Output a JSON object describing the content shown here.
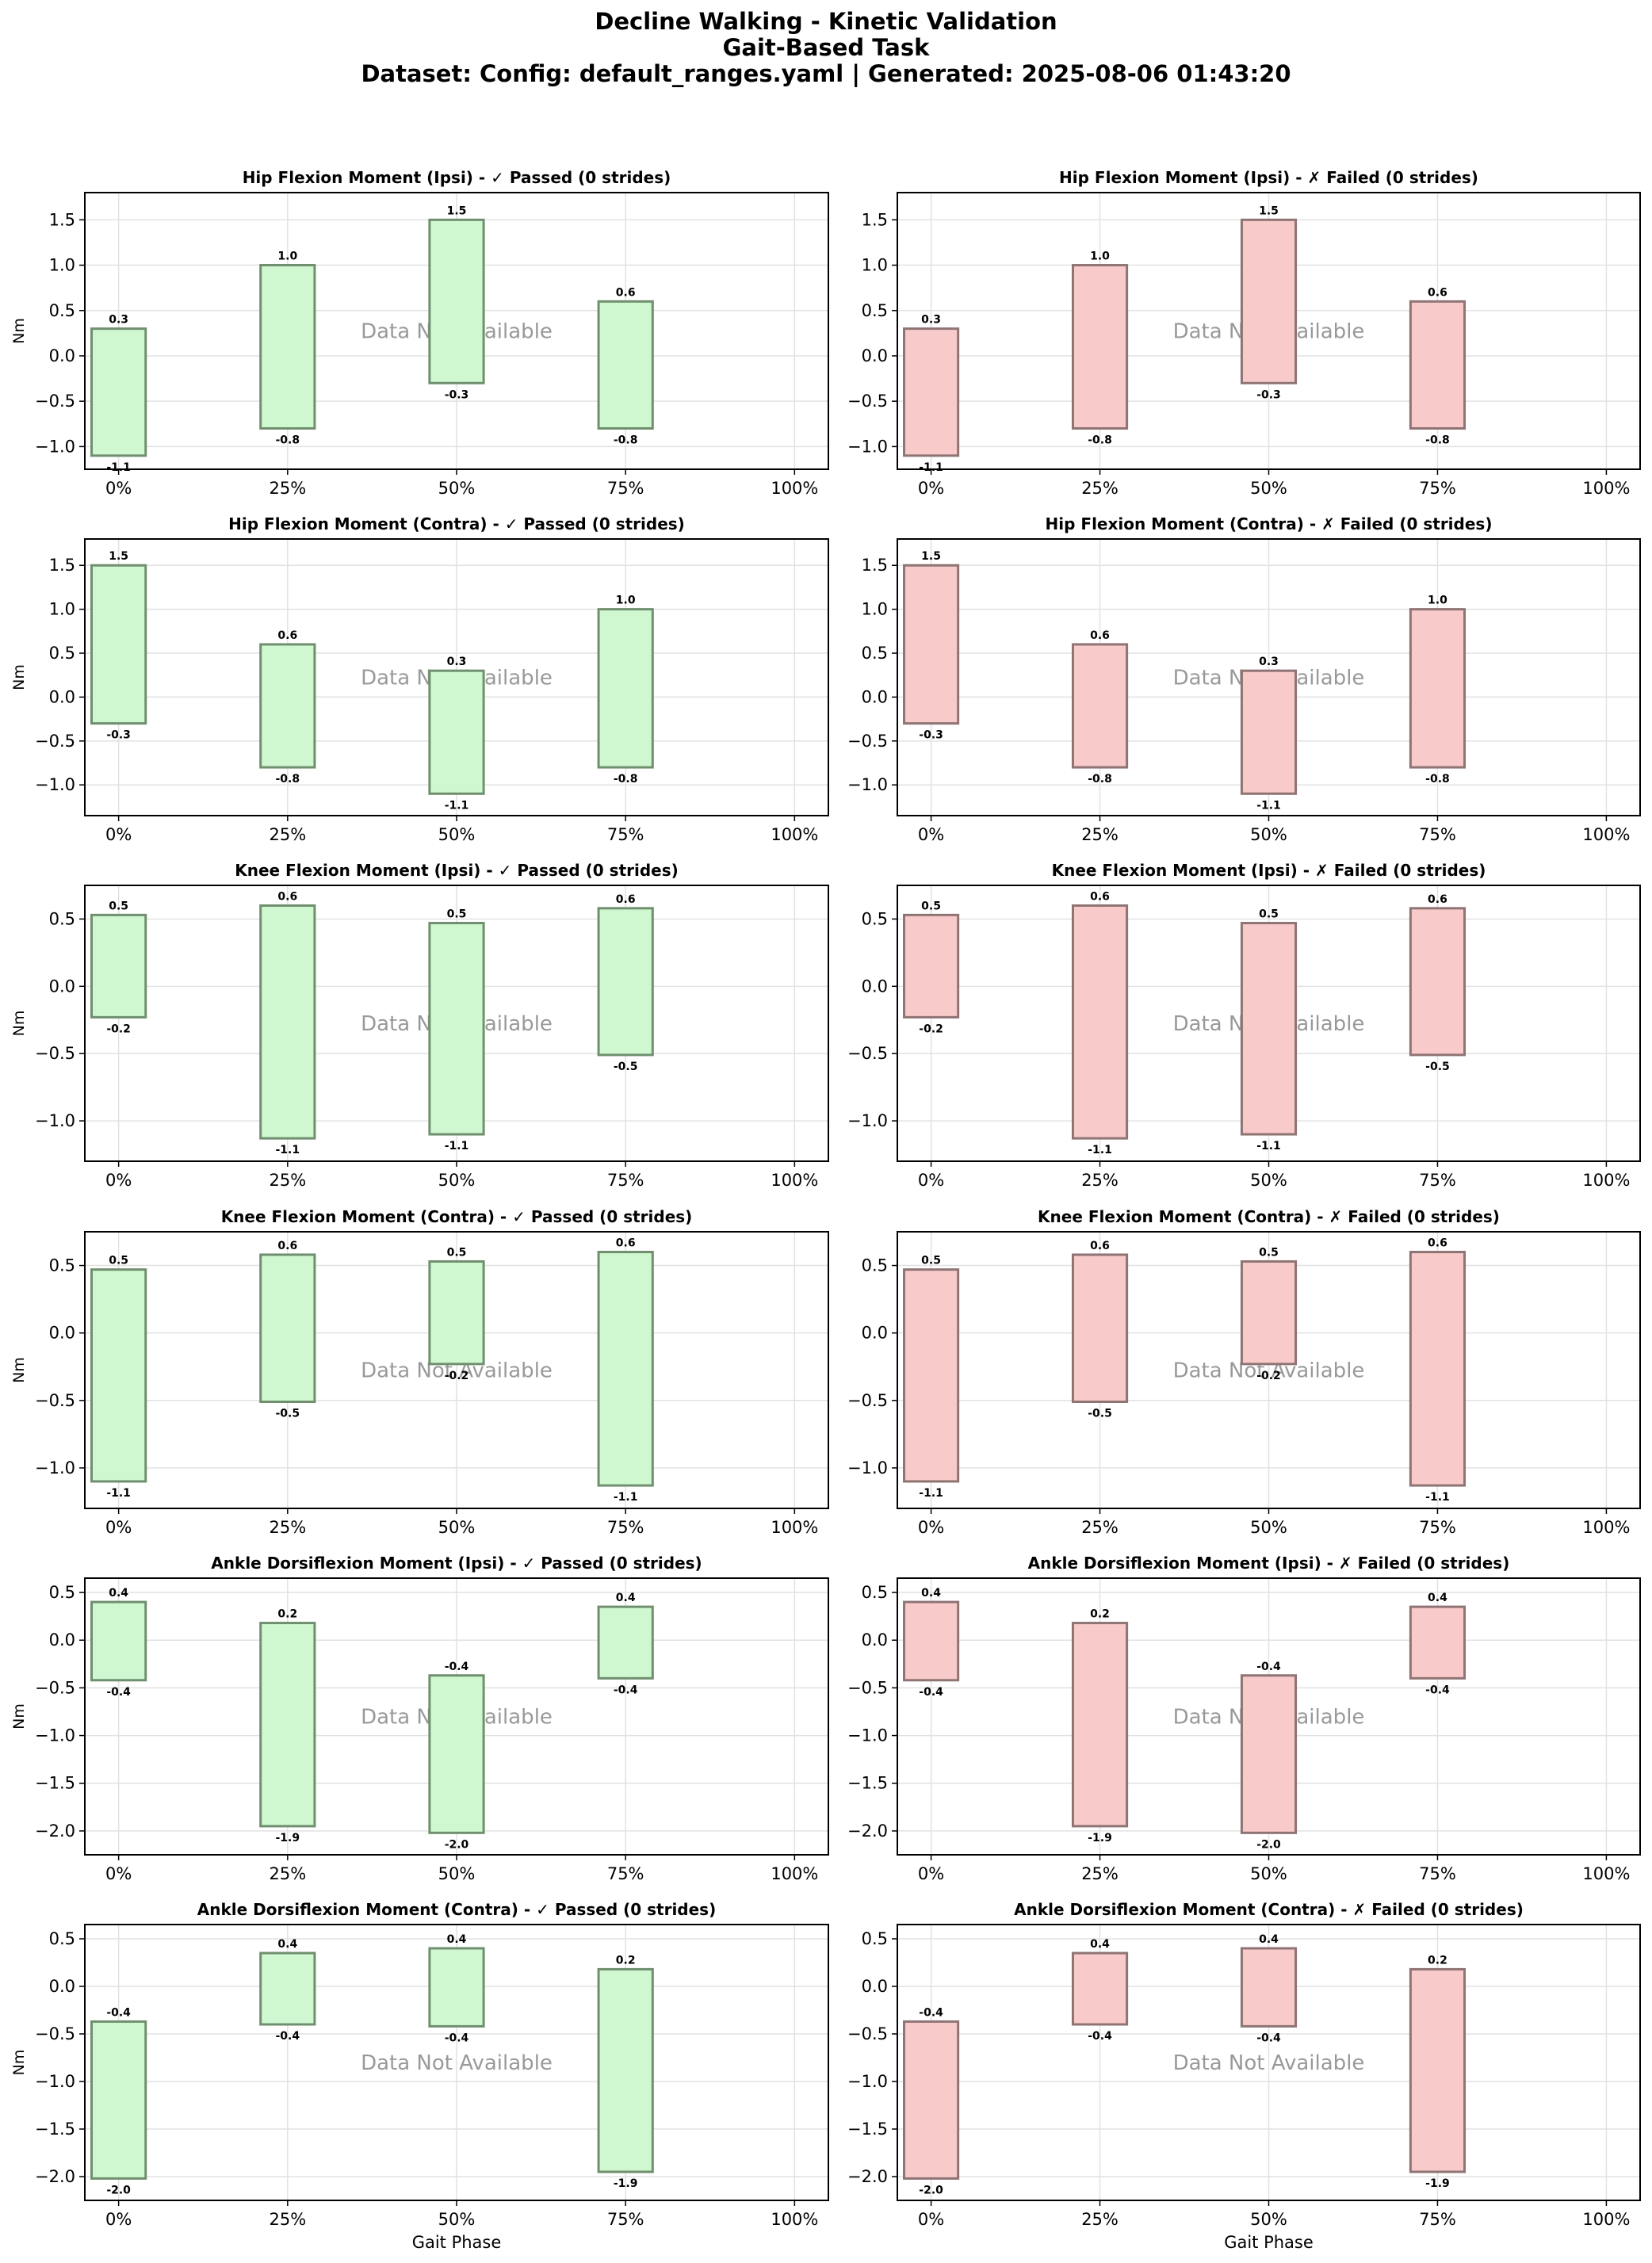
{
  "figure": {
    "title_lines": [
      "Decline Walking - Kinetic Validation",
      "Gait-Based Task",
      "Dataset: Config: default_ranges.yaml | Generated: 2025-08-06 01:43:20"
    ],
    "no_data_text": "Data Not Available",
    "x_axis_label": "Gait Phase",
    "y_axis_label": "Nm",
    "colors": {
      "passed_fill": "#d0f8d0",
      "passed_edge": "#6f8f6f",
      "failed_fill": "#f8caca",
      "failed_edge": "#8f7474",
      "grid": "#e2e2e2"
    }
  },
  "chart_data": [
    {
      "type": "bar",
      "title": "Hip Flexion Moment (Ipsi) - ✓ Passed (0 strides)",
      "status": "passed",
      "ylabel": "Nm",
      "xlabel": "",
      "ylim": [
        -1.25,
        1.8
      ],
      "yticks": [
        -1.0,
        -0.5,
        0.0,
        0.5,
        1.0,
        1.5
      ],
      "xticks": [
        "0%",
        "25%",
        "50%",
        "75%",
        "100%"
      ],
      "x": [
        0,
        25,
        50,
        75
      ],
      "lower": [
        -1.1,
        -0.8,
        -0.3,
        -0.8
      ],
      "upper": [
        0.3,
        1.0,
        1.5,
        0.6
      ],
      "lower_labels": [
        "-1.1",
        "-0.8",
        "-0.3",
        "-0.8"
      ],
      "upper_labels": [
        "0.3",
        "1.0",
        "1.5",
        "0.6"
      ]
    },
    {
      "type": "bar",
      "title": "Hip Flexion Moment (Ipsi) - ✗ Failed (0 strides)",
      "status": "failed",
      "ylabel": "",
      "xlabel": "",
      "ylim": [
        -1.25,
        1.8
      ],
      "yticks": [
        -1.0,
        -0.5,
        0.0,
        0.5,
        1.0,
        1.5
      ],
      "xticks": [
        "0%",
        "25%",
        "50%",
        "75%",
        "100%"
      ],
      "x": [
        0,
        25,
        50,
        75
      ],
      "lower": [
        -1.1,
        -0.8,
        -0.3,
        -0.8
      ],
      "upper": [
        0.3,
        1.0,
        1.5,
        0.6
      ],
      "lower_labels": [
        "-1.1",
        "-0.8",
        "-0.3",
        "-0.8"
      ],
      "upper_labels": [
        "0.3",
        "1.0",
        "1.5",
        "0.6"
      ]
    },
    {
      "type": "bar",
      "title": "Hip Flexion Moment (Contra) - ✓ Passed (0 strides)",
      "status": "passed",
      "ylabel": "Nm",
      "xlabel": "",
      "ylim": [
        -1.35,
        1.8
      ],
      "yticks": [
        -1.0,
        -0.5,
        0.0,
        0.5,
        1.0,
        1.5
      ],
      "xticks": [
        "0%",
        "25%",
        "50%",
        "75%",
        "100%"
      ],
      "x": [
        0,
        25,
        50,
        75
      ],
      "lower": [
        -0.3,
        -0.8,
        -1.1,
        -0.8
      ],
      "upper": [
        1.5,
        0.6,
        0.3,
        1.0
      ],
      "lower_labels": [
        "-0.3",
        "-0.8",
        "-1.1",
        "-0.8"
      ],
      "upper_labels": [
        "1.5",
        "0.6",
        "0.3",
        "1.0"
      ]
    },
    {
      "type": "bar",
      "title": "Hip Flexion Moment (Contra) - ✗ Failed (0 strides)",
      "status": "failed",
      "ylabel": "",
      "xlabel": "",
      "ylim": [
        -1.35,
        1.8
      ],
      "yticks": [
        -1.0,
        -0.5,
        0.0,
        0.5,
        1.0,
        1.5
      ],
      "xticks": [
        "0%",
        "25%",
        "50%",
        "75%",
        "100%"
      ],
      "x": [
        0,
        25,
        50,
        75
      ],
      "lower": [
        -0.3,
        -0.8,
        -1.1,
        -0.8
      ],
      "upper": [
        1.5,
        0.6,
        0.3,
        1.0
      ],
      "lower_labels": [
        "-0.3",
        "-0.8",
        "-1.1",
        "-0.8"
      ],
      "upper_labels": [
        "1.5",
        "0.6",
        "0.3",
        "1.0"
      ]
    },
    {
      "type": "bar",
      "title": "Knee Flexion Moment (Ipsi) - ✓ Passed (0 strides)",
      "status": "passed",
      "ylabel": "Nm",
      "xlabel": "",
      "ylim": [
        -1.3,
        0.75
      ],
      "yticks": [
        -1.0,
        -0.5,
        0.0,
        0.5
      ],
      "xticks": [
        "0%",
        "25%",
        "50%",
        "75%",
        "100%"
      ],
      "x": [
        0,
        25,
        50,
        75
      ],
      "lower": [
        -0.23,
        -1.13,
        -1.1,
        -0.51
      ],
      "upper": [
        0.53,
        0.6,
        0.47,
        0.58
      ],
      "lower_labels": [
        "-0.2",
        "-1.1",
        "-1.1",
        "-0.5"
      ],
      "upper_labels": [
        "0.5",
        "0.6",
        "0.5",
        "0.6"
      ]
    },
    {
      "type": "bar",
      "title": "Knee Flexion Moment (Ipsi) - ✗ Failed (0 strides)",
      "status": "failed",
      "ylabel": "",
      "xlabel": "",
      "ylim": [
        -1.3,
        0.75
      ],
      "yticks": [
        -1.0,
        -0.5,
        0.0,
        0.5
      ],
      "xticks": [
        "0%",
        "25%",
        "50%",
        "75%",
        "100%"
      ],
      "x": [
        0,
        25,
        50,
        75
      ],
      "lower": [
        -0.23,
        -1.13,
        -1.1,
        -0.51
      ],
      "upper": [
        0.53,
        0.6,
        0.47,
        0.58
      ],
      "lower_labels": [
        "-0.2",
        "-1.1",
        "-1.1",
        "-0.5"
      ],
      "upper_labels": [
        "0.5",
        "0.6",
        "0.5",
        "0.6"
      ]
    },
    {
      "type": "bar",
      "title": "Knee Flexion Moment (Contra) - ✓ Passed (0 strides)",
      "status": "passed",
      "ylabel": "Nm",
      "xlabel": "",
      "ylim": [
        -1.3,
        0.75
      ],
      "yticks": [
        -1.0,
        -0.5,
        0.0,
        0.5
      ],
      "xticks": [
        "0%",
        "25%",
        "50%",
        "75%",
        "100%"
      ],
      "x": [
        0,
        25,
        50,
        75
      ],
      "lower": [
        -1.1,
        -0.51,
        -0.23,
        -1.13
      ],
      "upper": [
        0.47,
        0.58,
        0.53,
        0.6
      ],
      "lower_labels": [
        "-1.1",
        "-0.5",
        "-0.2",
        "-1.1"
      ],
      "upper_labels": [
        "0.5",
        "0.6",
        "0.5",
        "0.6"
      ]
    },
    {
      "type": "bar",
      "title": "Knee Flexion Moment (Contra) - ✗ Failed (0 strides)",
      "status": "failed",
      "ylabel": "",
      "xlabel": "",
      "ylim": [
        -1.3,
        0.75
      ],
      "yticks": [
        -1.0,
        -0.5,
        0.0,
        0.5
      ],
      "xticks": [
        "0%",
        "25%",
        "50%",
        "75%",
        "100%"
      ],
      "x": [
        0,
        25,
        50,
        75
      ],
      "lower": [
        -1.1,
        -0.51,
        -0.23,
        -1.13
      ],
      "upper": [
        0.47,
        0.58,
        0.53,
        0.6
      ],
      "lower_labels": [
        "-1.1",
        "-0.5",
        "-0.2",
        "-1.1"
      ],
      "upper_labels": [
        "0.5",
        "0.6",
        "0.5",
        "0.6"
      ]
    },
    {
      "type": "bar",
      "title": "Ankle Dorsiflexion Moment (Ipsi) - ✓ Passed (0 strides)",
      "status": "passed",
      "ylabel": "Nm",
      "xlabel": "",
      "ylim": [
        -2.25,
        0.65
      ],
      "yticks": [
        -2.0,
        -1.5,
        -1.0,
        -0.5,
        0.0,
        0.5
      ],
      "xticks": [
        "0%",
        "25%",
        "50%",
        "75%",
        "100%"
      ],
      "x": [
        0,
        25,
        50,
        75
      ],
      "lower": [
        -0.42,
        -1.95,
        -2.02,
        -0.4
      ],
      "upper": [
        0.4,
        0.18,
        -0.37,
        0.35
      ],
      "lower_labels": [
        "-0.4",
        "-1.9",
        "-2.0",
        "-0.4"
      ],
      "upper_labels": [
        "0.4",
        "0.2",
        "-0.4",
        "0.4"
      ]
    },
    {
      "type": "bar",
      "title": "Ankle Dorsiflexion Moment (Ipsi) - ✗ Failed (0 strides)",
      "status": "failed",
      "ylabel": "",
      "xlabel": "",
      "ylim": [
        -2.25,
        0.65
      ],
      "yticks": [
        -2.0,
        -1.5,
        -1.0,
        -0.5,
        0.0,
        0.5
      ],
      "xticks": [
        "0%",
        "25%",
        "50%",
        "75%",
        "100%"
      ],
      "x": [
        0,
        25,
        50,
        75
      ],
      "lower": [
        -0.42,
        -1.95,
        -2.02,
        -0.4
      ],
      "upper": [
        0.4,
        0.18,
        -0.37,
        0.35
      ],
      "lower_labels": [
        "-0.4",
        "-1.9",
        "-2.0",
        "-0.4"
      ],
      "upper_labels": [
        "0.4",
        "0.2",
        "-0.4",
        "0.4"
      ]
    },
    {
      "type": "bar",
      "title": "Ankle Dorsiflexion Moment (Contra) - ✓ Passed (0 strides)",
      "status": "passed",
      "ylabel": "Nm",
      "xlabel": "Gait Phase",
      "ylim": [
        -2.25,
        0.65
      ],
      "yticks": [
        -2.0,
        -1.5,
        -1.0,
        -0.5,
        0.0,
        0.5
      ],
      "xticks": [
        "0%",
        "25%",
        "50%",
        "75%",
        "100%"
      ],
      "x": [
        0,
        25,
        50,
        75
      ],
      "lower": [
        -2.02,
        -0.4,
        -0.42,
        -1.95
      ],
      "upper": [
        -0.37,
        0.35,
        0.4,
        0.18
      ],
      "lower_labels": [
        "-2.0",
        "-0.4",
        "-0.4",
        "-1.9"
      ],
      "upper_labels": [
        "-0.4",
        "0.4",
        "0.4",
        "0.2"
      ]
    },
    {
      "type": "bar",
      "title": "Ankle Dorsiflexion Moment (Contra) - ✗ Failed (0 strides)",
      "status": "failed",
      "ylabel": "",
      "xlabel": "Gait Phase",
      "ylim": [
        -2.25,
        0.65
      ],
      "yticks": [
        -2.0,
        -1.5,
        -1.0,
        -0.5,
        0.0,
        0.5
      ],
      "xticks": [
        "0%",
        "25%",
        "50%",
        "75%",
        "100%"
      ],
      "x": [
        0,
        25,
        50,
        75
      ],
      "lower": [
        -2.02,
        -0.4,
        -0.42,
        -1.95
      ],
      "upper": [
        -0.37,
        0.35,
        0.4,
        0.18
      ],
      "lower_labels": [
        "-2.0",
        "-0.4",
        "-0.4",
        "-1.9"
      ],
      "upper_labels": [
        "-0.4",
        "0.4",
        "0.4",
        "0.2"
      ]
    }
  ]
}
